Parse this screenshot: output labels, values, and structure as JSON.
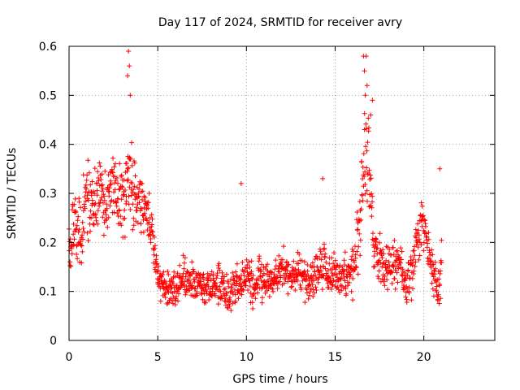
{
  "chart_data": {
    "type": "scatter",
    "title": "Day 117 of 2024, SRMTID for receiver avry",
    "xlabel": "GPS time / hours",
    "ylabel": "SRMTID / TECUs",
    "xlim": [
      0,
      24
    ],
    "ylim": [
      0,
      0.6
    ],
    "x_ticks": [
      0,
      5,
      10,
      15,
      20
    ],
    "x_tick_labels": [
      "0",
      "5",
      "10",
      "15",
      "20"
    ],
    "y_ticks": [
      0,
      0.1,
      0.2,
      0.3,
      0.4,
      0.5,
      0.6
    ],
    "y_tick_labels": [
      "0",
      "0.1",
      "0.2",
      "0.3",
      "0.4",
      "0.5",
      "0.6"
    ],
    "grid": true,
    "marker": "plus",
    "series_color": "#ff0000",
    "envelope": {
      "x": [
        0.0,
        0.3,
        0.6,
        1.0,
        1.5,
        2.0,
        2.5,
        3.0,
        3.3,
        3.6,
        4.0,
        4.4,
        4.7,
        5.0,
        5.5,
        6.0,
        6.5,
        7.0,
        7.5,
        8.0,
        8.5,
        9.0,
        9.5,
        10.0,
        10.5,
        11.0,
        11.5,
        12.0,
        12.5,
        13.0,
        13.5,
        14.0,
        14.3,
        14.6,
        15.0,
        15.5,
        16.0,
        16.3,
        16.6,
        16.8,
        17.0,
        17.2,
        17.5,
        18.0,
        18.5,
        19.0,
        19.3,
        19.6,
        19.9,
        20.2,
        20.5,
        20.8,
        21.0
      ],
      "center": [
        0.17,
        0.25,
        0.2,
        0.28,
        0.3,
        0.29,
        0.32,
        0.28,
        0.35,
        0.3,
        0.28,
        0.26,
        0.21,
        0.13,
        0.11,
        0.1,
        0.13,
        0.12,
        0.11,
        0.11,
        0.12,
        0.09,
        0.12,
        0.13,
        0.11,
        0.13,
        0.12,
        0.14,
        0.13,
        0.14,
        0.12,
        0.14,
        0.16,
        0.14,
        0.13,
        0.13,
        0.14,
        0.2,
        0.34,
        0.4,
        0.28,
        0.18,
        0.16,
        0.15,
        0.17,
        0.11,
        0.14,
        0.19,
        0.25,
        0.2,
        0.14,
        0.1,
        0.16
      ],
      "spread": [
        0.05,
        0.08,
        0.09,
        0.08,
        0.07,
        0.07,
        0.07,
        0.08,
        0.09,
        0.08,
        0.06,
        0.06,
        0.05,
        0.04,
        0.04,
        0.04,
        0.05,
        0.05,
        0.04,
        0.04,
        0.05,
        0.04,
        0.05,
        0.05,
        0.05,
        0.05,
        0.04,
        0.05,
        0.04,
        0.04,
        0.05,
        0.05,
        0.06,
        0.05,
        0.04,
        0.04,
        0.05,
        0.07,
        0.12,
        0.13,
        0.09,
        0.05,
        0.05,
        0.05,
        0.05,
        0.04,
        0.06,
        0.06,
        0.06,
        0.05,
        0.04,
        0.03,
        0.1
      ]
    },
    "peaks": [
      {
        "x": 3.35,
        "y": 0.59
      },
      {
        "x": 3.4,
        "y": 0.56
      },
      {
        "x": 3.3,
        "y": 0.54
      },
      {
        "x": 3.45,
        "y": 0.5
      },
      {
        "x": 16.6,
        "y": 0.58
      },
      {
        "x": 16.75,
        "y": 0.58
      },
      {
        "x": 16.65,
        "y": 0.55
      },
      {
        "x": 16.8,
        "y": 0.52
      },
      {
        "x": 16.7,
        "y": 0.5
      },
      {
        "x": 17.1,
        "y": 0.49
      },
      {
        "x": 17.0,
        "y": 0.46
      },
      {
        "x": 20.9,
        "y": 0.35
      },
      {
        "x": 9.7,
        "y": 0.32
      },
      {
        "x": 14.3,
        "y": 0.33
      }
    ],
    "point_count": 1400
  }
}
